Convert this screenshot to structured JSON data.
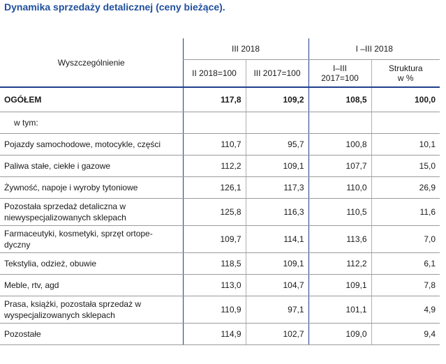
{
  "title": "Dynamika sprzedaży detalicznej (ceny bieżące).",
  "header": {
    "row_label": "Wyszczególnienie",
    "group1": "III 2018",
    "group2": "I –III 2018",
    "sub": [
      "II 2018=100",
      "III 2017=100",
      "I–III 2017=100",
      "Struktura w %"
    ]
  },
  "rows": [
    {
      "label": "OGÓŁEM",
      "v": [
        "117,8",
        "109,2",
        "108,5",
        "100,0"
      ]
    },
    {
      "label": "w tym:",
      "v": [
        "",
        "",
        "",
        ""
      ]
    },
    {
      "label": "Pojazdy samochodowe, motocykle, części",
      "v": [
        "110,7",
        "95,7",
        "100,8",
        "10,1"
      ]
    },
    {
      "label": "Paliwa stałe, ciekłe i gazowe",
      "v": [
        "112,2",
        "109,1",
        "107,7",
        "15,0"
      ]
    },
    {
      "label": "Żywność, napoje i wyroby tytoniowe",
      "v": [
        "126,1",
        "117,3",
        "110,0",
        "26,9"
      ]
    },
    {
      "label": "Pozostała sprzedaż detaliczna w niewyspecjalizowanych sklepach",
      "v": [
        "125,8",
        "116,3",
        "110,5",
        "11,6"
      ]
    },
    {
      "label": "Farmaceutyki, kosmetyki, sprzęt ortope-dyczny",
      "v": [
        "109,7",
        "114,1",
        "113,6",
        "7,0"
      ]
    },
    {
      "label": "Tekstylia, odzież, obuwie",
      "v": [
        "118,5",
        "109,1",
        "112,2",
        "6,1"
      ]
    },
    {
      "label": "Meble, rtv, agd",
      "v": [
        "113,0",
        "104,7",
        "109,1",
        "7,8"
      ]
    },
    {
      "label": "Prasa, książki, pozostała sprzedaż w wyspecjalizowanych sklepach",
      "v": [
        "110,9",
        "97,1",
        "101,1",
        "4,9"
      ]
    },
    {
      "label": "Pozostałe",
      "v": [
        "114,9",
        "102,7",
        "109,0",
        "9,4"
      ]
    }
  ]
}
